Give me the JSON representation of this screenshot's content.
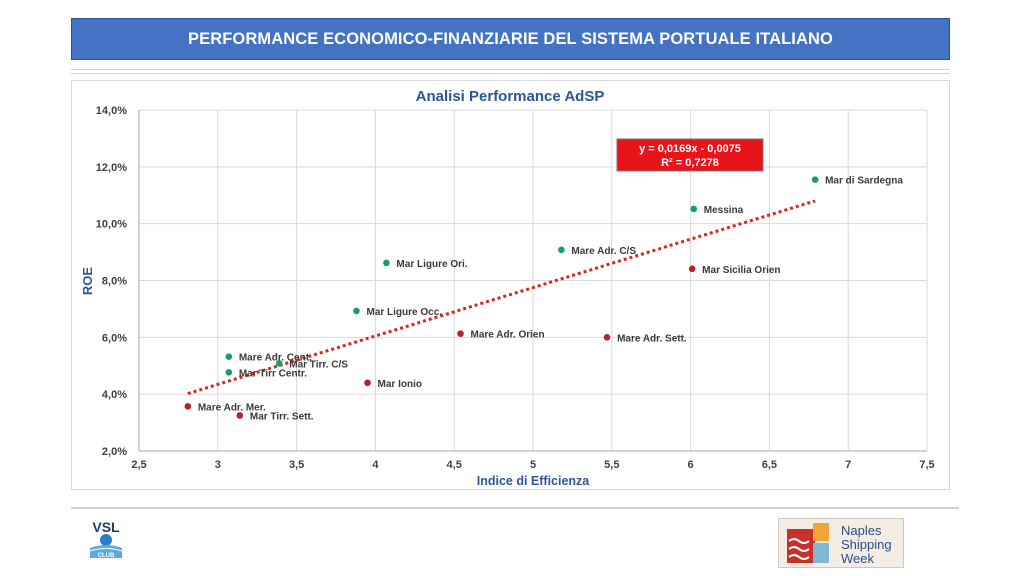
{
  "header": {
    "title": "PERFORMANCE ECONOMICO-FINANZIARIE DEL SISTEMA PORTUALE ITALIANO"
  },
  "chart_data": {
    "type": "scatter",
    "title": "Analisi Performance AdSP",
    "xlabel": "Indice di Efficienza",
    "ylabel": "ROE",
    "xlim": [
      2.5,
      7.5
    ],
    "ylim": [
      2.0,
      14.0
    ],
    "x_ticks": [
      "2,5",
      "3",
      "3,5",
      "4",
      "4,5",
      "5",
      "5,5",
      "6",
      "6,5",
      "7",
      "7,5"
    ],
    "y_ticks": [
      "2,0%",
      "4,0%",
      "6,0%",
      "8,0%",
      "10,0%",
      "12,0%",
      "14,0%"
    ],
    "grid": true,
    "colors": {
      "green": "#1a9a70",
      "red": "#b5222e",
      "trend": "#d9251c",
      "title": "#2e5597"
    },
    "points": [
      {
        "label": "Mar di Sardegna",
        "x": 6.79,
        "y": 11.55,
        "color": "green"
      },
      {
        "label": "Messina",
        "x": 6.02,
        "y": 10.52,
        "color": "green"
      },
      {
        "label": "Mare Adr. C/S",
        "x": 5.18,
        "y": 9.08,
        "color": "green"
      },
      {
        "label": "Mar Sicilia Orien",
        "x": 6.01,
        "y": 8.41,
        "color": "red"
      },
      {
        "label": "Mar Ligure Ori.",
        "x": 4.07,
        "y": 8.62,
        "color": "green"
      },
      {
        "label": "Mar Ligure Occ.",
        "x": 3.88,
        "y": 6.93,
        "color": "green"
      },
      {
        "label": "Mare Adr. Orien",
        "x": 4.54,
        "y": 6.13,
        "color": "red"
      },
      {
        "label": "Mare Adr. Sett.",
        "x": 5.47,
        "y": 6.0,
        "color": "red"
      },
      {
        "label": "Mare Adr. Cent.",
        "x": 3.07,
        "y": 5.32,
        "color": "green"
      },
      {
        "label": "Mar Tirr. C/S",
        "x": 3.39,
        "y": 5.08,
        "color": "green"
      },
      {
        "label": "Mar Tirr Centr.",
        "x": 3.07,
        "y": 4.77,
        "color": "green"
      },
      {
        "label": "Mar Ionio",
        "x": 3.95,
        "y": 4.4,
        "color": "red"
      },
      {
        "label": "Mare Adr. Mer.",
        "x": 2.81,
        "y": 3.57,
        "color": "red"
      },
      {
        "label": "Mar Tirr. Sett.",
        "x": 3.14,
        "y": 3.25,
        "color": "red"
      }
    ],
    "trendline": {
      "type": "linear",
      "x_start": 2.81,
      "x_end": 6.79,
      "y_start": 4.02,
      "y_end": 10.8,
      "style": "dotted"
    },
    "annotation": {
      "equation": "y = 0,0169x - 0,0075",
      "r2": "R² = 0,7278"
    }
  },
  "footer": {
    "left_logo": {
      "name": "VSL",
      "sub": "CLUB"
    },
    "right_logo": {
      "line1": "Naples",
      "line2": "Shipping",
      "line3": "Week"
    }
  }
}
